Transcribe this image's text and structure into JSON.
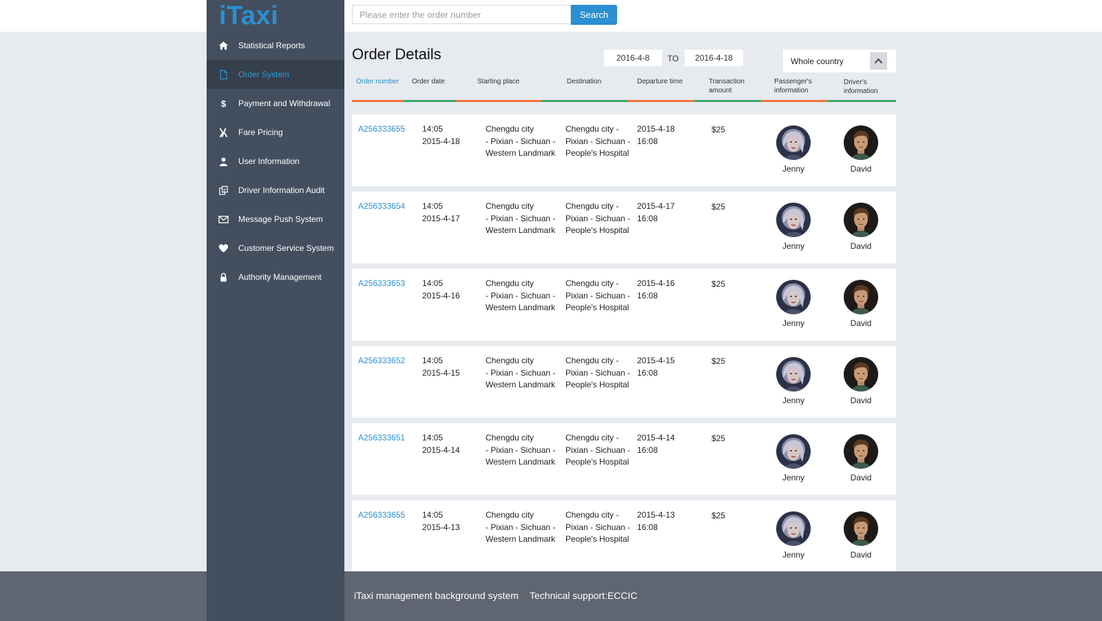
{
  "app": {
    "logo": "iTaxi"
  },
  "search": {
    "placeholder": "Please enter the order number",
    "button_label": "Search"
  },
  "sidebar": {
    "items": [
      {
        "label": "Statistical Reports",
        "icon": "home-icon"
      },
      {
        "label": "Order System",
        "icon": "document-icon",
        "active": true
      },
      {
        "label": "Payment and Withdrawal",
        "icon": "dollar-icon"
      },
      {
        "label": "Fare Pricing",
        "icon": "fare-icon"
      },
      {
        "label": "User Information",
        "icon": "user-icon"
      },
      {
        "label": "Driver Information Audit",
        "icon": "audit-icon"
      },
      {
        "label": "Message Push System",
        "icon": "envelope-icon"
      },
      {
        "label": "Customer Service System",
        "icon": "heart-icon"
      },
      {
        "label": "Authority Management",
        "icon": "lock-icon"
      }
    ]
  },
  "main": {
    "title": "Order Details",
    "date_from": "2016-4-8",
    "to_label": "TO",
    "date_to": "2016-4-18",
    "region": "Whole country"
  },
  "table": {
    "headers": [
      [
        "Order number"
      ],
      [
        "Order date"
      ],
      [
        "Starting place"
      ],
      [
        "Destination"
      ],
      [
        "Departure time"
      ],
      [
        "Transaction",
        "amount"
      ],
      [
        "Passenger's",
        "information"
      ],
      [
        "Driver's",
        "information"
      ]
    ],
    "rows": [
      {
        "order": "A256333655",
        "time": "14:05",
        "date": "2015-4-18",
        "start": [
          "Chengdu city",
          "- Pixian - Sichuan -",
          "Western Landmark"
        ],
        "dest": [
          "Chengdu city -",
          "Pixian - Sichuan -",
          "People's Hospital"
        ],
        "dep_date": "2015-4-18",
        "dep_time": "16:08",
        "amount": "$25",
        "passenger": "Jenny",
        "driver": "David"
      },
      {
        "order": "A256333654",
        "time": "14:05",
        "date": "2015-4-17",
        "start": [
          "Chengdu city",
          "- Pixian - Sichuan -",
          "Western Landmark"
        ],
        "dest": [
          "Chengdu city -",
          "Pixian - Sichuan -",
          "People's Hospital"
        ],
        "dep_date": "2015-4-17",
        "dep_time": "16:08",
        "amount": "$25",
        "passenger": "Jenny",
        "driver": "David"
      },
      {
        "order": "A256333653",
        "time": "14:05",
        "date": "2015-4-16",
        "start": [
          "Chengdu city",
          "- Pixian - Sichuan -",
          "Western Landmark"
        ],
        "dest": [
          "Chengdu city -",
          "Pixian - Sichuan -",
          "People's Hospital"
        ],
        "dep_date": "2015-4-16",
        "dep_time": "16:08",
        "amount": "$25",
        "passenger": "Jenny",
        "driver": "David"
      },
      {
        "order": "A256333652",
        "time": "14:05",
        "date": "2015-4-15",
        "start": [
          "Chengdu city",
          "- Pixian - Sichuan -",
          "Western Landmark"
        ],
        "dest": [
          "Chengdu city -",
          "Pixian - Sichuan -",
          "People's Hospital"
        ],
        "dep_date": "2015-4-15",
        "dep_time": "16:08",
        "amount": "$25",
        "passenger": "Jenny",
        "driver": "David"
      },
      {
        "order": "A256333651",
        "time": "14:05",
        "date": "2015-4-14",
        "start": [
          "Chengdu city",
          "- Pixian - Sichuan -",
          "Western Landmark"
        ],
        "dest": [
          "Chengdu city -",
          "Pixian - Sichuan -",
          "People's Hospital"
        ],
        "dep_date": "2015-4-14",
        "dep_time": "16:08",
        "amount": "$25",
        "passenger": "Jenny",
        "driver": "David"
      },
      {
        "order": "A256333655",
        "time": "14:05",
        "date": "2015-4-13",
        "start": [
          "Chengdu city",
          "- Pixian - Sichuan -",
          "Western Landmark"
        ],
        "dest": [
          "Chengdu city -",
          "Pixian - Sichuan -",
          "People's Hospital"
        ],
        "dep_date": "2015-4-13",
        "dep_time": "16:08",
        "amount": "$25",
        "passenger": "Jenny",
        "driver": "David"
      }
    ]
  },
  "footer": {
    "system": "iTaxi management background system",
    "support": "Technical support:ECCIC"
  },
  "colors": {
    "accent": "#2b8fd0",
    "sidebar": "#434f5f",
    "sidebar_active": "#363f4c",
    "header_orange": "#f0743b",
    "header_green": "#3aaa6d"
  }
}
